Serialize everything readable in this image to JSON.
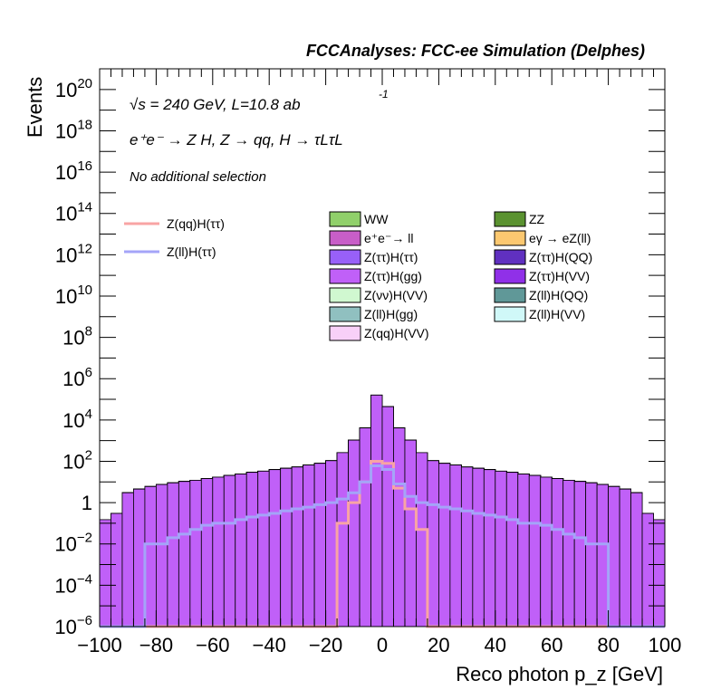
{
  "header": {
    "title": "FCCAnalyses: FCC-ee Simulation (Delphes)",
    "energy_line": "√s = 240 GeV, L=10.8 ab",
    "energy_sup": "-1",
    "process_line": "e⁺e⁻ → Z H, Z → qq, H → τLτL",
    "selection_line": "No additional selection"
  },
  "legend": {
    "signals": [
      {
        "label": "Z(qq)H(ττ)",
        "color": "#f8a4a4"
      },
      {
        "label": "Z(ll)H(ττ)",
        "color": "#a4a4f8"
      }
    ],
    "backgrounds": [
      {
        "label": "WW",
        "color": "#90d06a"
      },
      {
        "label": "ZZ",
        "color": "#5a9230"
      },
      {
        "label": "e⁺e⁻→ ll",
        "color": "#c85ec8"
      },
      {
        "label": "eγ → eZ(ll)",
        "color": "#fcc870"
      },
      {
        "label": "Z(ττ)H(ττ)",
        "color": "#9860f8"
      },
      {
        "label": "Z(ττ)H(QQ)",
        "color": "#6030c0"
      },
      {
        "label": "Z(ττ)H(gg)",
        "color": "#c060f8"
      },
      {
        "label": "Z(ττ)H(VV)",
        "color": "#9030e8"
      },
      {
        "label": "Z(νν)H(VV)",
        "color": "#d0f8d0"
      },
      {
        "label": "Z(ll)H(QQ)",
        "color": "#609898"
      },
      {
        "label": "Z(ll)H(gg)",
        "color": "#90c0c0"
      },
      {
        "label": "Z(ll)H(VV)",
        "color": "#d0f8f8"
      },
      {
        "label": "Z(qq)H(VV)",
        "color": "#f8d0f8"
      }
    ]
  },
  "chart_data": {
    "type": "area",
    "xlabel": "Reco photon p_z [GeV]",
    "ylabel": "Events",
    "xlim": [
      -100,
      100
    ],
    "ylim": [
      1e-06,
      1e+21
    ],
    "log_y": true,
    "bin_width": 4,
    "x_ticks": [
      -100,
      -80,
      -60,
      -40,
      -20,
      0,
      20,
      40,
      60,
      80,
      100
    ],
    "y_ticks": [
      "10^-6",
      "10^-4",
      "10^-2",
      "1",
      "10^2",
      "10^4",
      "10^6",
      "10^8",
      "10^10",
      "10^12",
      "10^14",
      "10^16",
      "10^18",
      "10^20"
    ],
    "bin_centers": [
      -98,
      -94,
      -90,
      -86,
      -82,
      -78,
      -74,
      -70,
      -66,
      -62,
      -58,
      -54,
      -50,
      -46,
      -42,
      -38,
      -34,
      -30,
      -26,
      -22,
      -18,
      -14,
      -10,
      -6,
      -2,
      2,
      6,
      10,
      14,
      18,
      22,
      26,
      30,
      34,
      38,
      42,
      46,
      50,
      54,
      58,
      62,
      66,
      70,
      74,
      78,
      82,
      86,
      90,
      94,
      98
    ],
    "stack_order": [
      "ZZ",
      "e⁺e⁻→ ll",
      "Z(ll)H(QQ)",
      "eγ → eZ(ll)",
      "Z(ll)H(VV)",
      "Z(νν)H(VV)",
      "WW",
      "Z(ττ)H(ττ)",
      "Z(ττ)H(QQ)",
      "Z(ττ)H(VV)",
      "Z(ττ)H(gg)"
    ],
    "series": [
      {
        "name": "ZZ",
        "values": [
          0.1,
          0.2,
          2,
          3,
          4,
          5,
          6,
          7,
          8,
          10,
          12,
          15,
          18,
          22,
          25,
          30,
          35,
          40,
          50,
          60,
          80,
          200,
          800,
          3000,
          150000,
          40000,
          3000,
          800,
          200,
          80,
          60,
          50,
          40,
          35,
          30,
          25,
          22,
          18,
          15,
          12,
          10,
          8,
          7,
          6,
          5,
          4,
          3,
          2,
          0.2,
          0.1
        ]
      },
      {
        "name": "e⁺e⁻→ ll",
        "values": [
          0.05,
          0.1,
          1,
          1.5,
          2,
          2.5,
          3,
          3.5,
          4,
          4.5,
          5,
          5.5,
          6,
          7,
          8,
          9,
          10,
          12,
          15,
          18,
          25,
          60,
          200,
          800,
          8000,
          3000,
          800,
          200,
          60,
          25,
          18,
          15,
          12,
          10,
          9,
          8,
          7,
          6,
          5.5,
          5,
          4.5,
          4,
          3.5,
          3,
          2.5,
          2,
          1.5,
          1,
          0.1,
          0.05
        ]
      },
      {
        "name": "Z(ll)H(QQ)",
        "values": [
          0,
          0,
          0,
          0,
          0,
          0,
          0,
          0,
          0,
          0,
          0,
          0,
          0,
          0,
          0,
          0,
          0,
          0,
          0,
          0,
          0,
          0,
          50,
          300,
          2000,
          1000,
          300,
          50,
          0,
          0,
          0,
          0,
          0,
          0,
          0,
          0,
          0,
          0,
          0,
          0,
          0,
          0,
          0,
          0,
          0,
          0,
          0,
          0,
          0,
          0
        ]
      },
      {
        "name": "eγ → eZ(ll)",
        "values": [
          0,
          0,
          0,
          0,
          0,
          0,
          0,
          0,
          0,
          0.01,
          0.02,
          0.03,
          0.05,
          0.08,
          0.1,
          0.15,
          0.2,
          0.3,
          0.4,
          0.5,
          0.6,
          1,
          2,
          8,
          20,
          10,
          3,
          1,
          0.6,
          0.5,
          0.4,
          0.3,
          0.2,
          0.15,
          0.1,
          0.08,
          0.05,
          0.03,
          0.02,
          0.01,
          0,
          0,
          0,
          0,
          0,
          0,
          0,
          0,
          0,
          0
        ]
      },
      {
        "name": "Z(ll)H(VV)",
        "values": [
          0,
          0,
          0,
          0,
          0.01,
          0.02,
          0.03,
          0.04,
          0.05,
          0.06,
          0.08,
          0.1,
          0.12,
          0.15,
          0.2,
          0.3,
          0.4,
          0.5,
          0.6,
          0.8,
          1,
          1.5,
          2,
          4,
          10,
          6,
          3,
          2,
          1.5,
          1,
          0.8,
          0.6,
          0.5,
          0.4,
          0.3,
          0.2,
          0.15,
          0.12,
          0.1,
          0.08,
          0.06,
          0.05,
          0.04,
          0.03,
          0.02,
          0.01,
          0,
          0,
          0,
          0
        ]
      },
      {
        "name": "Z(νν)H(VV)",
        "values": [
          0,
          0,
          0,
          0,
          0,
          0,
          0,
          0,
          0,
          0,
          0,
          0,
          0,
          0,
          0.01,
          0.02,
          0.03,
          0.05,
          0.08,
          0.1,
          0.2,
          0.3,
          0.5,
          1,
          2,
          1.5,
          0.8,
          0.5,
          0.3,
          0.2,
          0.1,
          0.08,
          0.05,
          0.03,
          0.02,
          0.01,
          0,
          0,
          0,
          0,
          0,
          0,
          0,
          0,
          0,
          0,
          0,
          0,
          0,
          0
        ]
      },
      {
        "name": "WW",
        "values": [
          0,
          0,
          0,
          0,
          0,
          0,
          0,
          0,
          0,
          0,
          0,
          0,
          0,
          0,
          0,
          0,
          0,
          0,
          0,
          0,
          0.1,
          0.3,
          1,
          3,
          5,
          4,
          2,
          0.8,
          0.3,
          0.1,
          0,
          0,
          0,
          0,
          0,
          0,
          0,
          0,
          0,
          0,
          0,
          0,
          0,
          0,
          0,
          0,
          0,
          0,
          0,
          0
        ]
      },
      {
        "name": "Z(ττ)H(ττ)",
        "values": [
          0,
          0,
          0,
          0,
          0,
          0,
          0,
          0,
          0,
          0,
          0,
          0,
          0,
          0,
          0.005,
          0.01,
          0.02,
          0.03,
          0.05,
          0.1,
          0.2,
          0.3,
          0.5,
          1,
          2,
          1.5,
          0.8,
          0.5,
          0.3,
          0.2,
          0.1,
          0.05,
          0.03,
          0.02,
          0.01,
          0.005,
          0,
          0,
          0,
          0,
          0,
          0,
          0,
          0,
          0,
          0,
          0,
          0,
          0,
          0
        ]
      },
      {
        "name": "Z(ττ)H(QQ)",
        "values": [
          0,
          0,
          0,
          0,
          0,
          0,
          0,
          0,
          0,
          0,
          0,
          0,
          0,
          0,
          0,
          0,
          0,
          0,
          0,
          0,
          0.05,
          0.1,
          0.2,
          0.5,
          1,
          0.8,
          0.4,
          0.2,
          0.1,
          0.05,
          0,
          0,
          0,
          0,
          0,
          0,
          0,
          0,
          0,
          0,
          0,
          0,
          0,
          0,
          0,
          0,
          0,
          0,
          0,
          0
        ]
      },
      {
        "name": "Z(ττ)H(VV)",
        "values": [
          0,
          0,
          0,
          0,
          0,
          0,
          0,
          0,
          0,
          0,
          0,
          0,
          0,
          0,
          0,
          0,
          0,
          0,
          0,
          0.02,
          0.05,
          0.1,
          0.2,
          0.5,
          1,
          0.8,
          0.4,
          0.2,
          0.1,
          0.05,
          0.02,
          0,
          0,
          0,
          0,
          0,
          0,
          0,
          0,
          0,
          0,
          0,
          0,
          0,
          0,
          0,
          0,
          0,
          0,
          0
        ]
      },
      {
        "name": "Z(ττ)H(gg)",
        "values": [
          0,
          0,
          0,
          0,
          0,
          0,
          0,
          0,
          0,
          0,
          0,
          0,
          0,
          0,
          0,
          0,
          0,
          0,
          0,
          0,
          0,
          0.001,
          0.002,
          0.005,
          0.01,
          0.008,
          0.004,
          0.002,
          0.001,
          0,
          0,
          0,
          0,
          0,
          0,
          0,
          0,
          0,
          0,
          0,
          0,
          0,
          0,
          0,
          0,
          0,
          0,
          0,
          0,
          0
        ]
      },
      {
        "name": "Z(qq)H(ττ)",
        "values": [
          0,
          0,
          0,
          0,
          0,
          0,
          0,
          0,
          0,
          0,
          0,
          0,
          0,
          0,
          0,
          0,
          0,
          0,
          0,
          0,
          0,
          0.1,
          1,
          10,
          100,
          80,
          5,
          0.5,
          0.05,
          0,
          0,
          0,
          0,
          0,
          0,
          0,
          0,
          0,
          0,
          0,
          0,
          0,
          0,
          0,
          0,
          0,
          0,
          0,
          0,
          0
        ]
      },
      {
        "name": "Z(ll)H(ττ)",
        "values": [
          0,
          0,
          0,
          0,
          0.01,
          0.01,
          0.02,
          0.03,
          0.05,
          0.08,
          0.1,
          0.1,
          0.15,
          0.2,
          0.25,
          0.3,
          0.4,
          0.5,
          0.6,
          0.8,
          1,
          1.5,
          3,
          10,
          60,
          40,
          8,
          2,
          1,
          0.8,
          0.6,
          0.5,
          0.4,
          0.3,
          0.25,
          0.2,
          0.15,
          0.1,
          0.1,
          0.08,
          0.05,
          0.03,
          0.02,
          0.01,
          0.01,
          0,
          0,
          0,
          0,
          0
        ]
      }
    ]
  }
}
